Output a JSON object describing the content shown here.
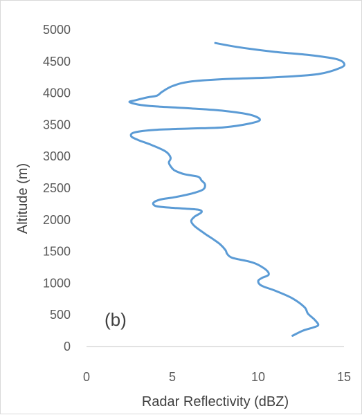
{
  "chart_data": {
    "type": "line",
    "title": "",
    "panel_label": "(b)",
    "xlabel": "Radar Reflectivity (dBZ)",
    "ylabel": "Altitude (m)",
    "xlim": [
      0,
      15
    ],
    "ylim": [
      0,
      5000
    ],
    "x_ticks": [
      "0",
      "5",
      "10",
      "15"
    ],
    "y_ticks": [
      "0",
      "500",
      "1000",
      "1500",
      "2000",
      "2500",
      "3000",
      "3500",
      "4000",
      "4500",
      "5000"
    ],
    "grid": false,
    "legend": "none",
    "series": [
      {
        "color": "#5b9bd5",
        "points": [
          [
            12.0,
            170
          ],
          [
            12.6,
            250
          ],
          [
            13.2,
            300
          ],
          [
            13.5,
            340
          ],
          [
            13.3,
            420
          ],
          [
            12.9,
            520
          ],
          [
            12.7,
            620
          ],
          [
            12.0,
            760
          ],
          [
            11.0,
            880
          ],
          [
            10.2,
            960
          ],
          [
            10.0,
            1030
          ],
          [
            10.2,
            1080
          ],
          [
            10.6,
            1130
          ],
          [
            10.5,
            1200
          ],
          [
            10.0,
            1290
          ],
          [
            9.5,
            1340
          ],
          [
            8.5,
            1400
          ],
          [
            8.2,
            1460
          ],
          [
            8.1,
            1520
          ],
          [
            7.8,
            1610
          ],
          [
            7.4,
            1690
          ],
          [
            6.9,
            1780
          ],
          [
            6.3,
            1900
          ],
          [
            6.1,
            1980
          ],
          [
            6.3,
            2050
          ],
          [
            6.7,
            2120
          ],
          [
            6.5,
            2160
          ],
          [
            5.5,
            2180
          ],
          [
            4.5,
            2200
          ],
          [
            4.0,
            2220
          ],
          [
            3.9,
            2270
          ],
          [
            4.3,
            2320
          ],
          [
            5.2,
            2360
          ],
          [
            6.2,
            2420
          ],
          [
            6.8,
            2480
          ],
          [
            6.9,
            2560
          ],
          [
            6.7,
            2620
          ],
          [
            6.5,
            2680
          ],
          [
            5.7,
            2720
          ],
          [
            5.2,
            2770
          ],
          [
            5.0,
            2810
          ],
          [
            4.8,
            2900
          ],
          [
            4.9,
            2980
          ],
          [
            4.6,
            3080
          ],
          [
            3.8,
            3180
          ],
          [
            3.0,
            3260
          ],
          [
            2.6,
            3320
          ],
          [
            2.8,
            3380
          ],
          [
            4.0,
            3420
          ],
          [
            6.0,
            3440
          ],
          [
            8.0,
            3460
          ],
          [
            9.5,
            3520
          ],
          [
            10.1,
            3580
          ],
          [
            9.5,
            3660
          ],
          [
            8.0,
            3720
          ],
          [
            6.0,
            3760
          ],
          [
            4.0,
            3790
          ],
          [
            3.0,
            3820
          ],
          [
            2.5,
            3860
          ],
          [
            2.9,
            3890
          ],
          [
            3.5,
            3930
          ],
          [
            4.1,
            3960
          ],
          [
            4.4,
            4020
          ],
          [
            5.0,
            4110
          ],
          [
            6.0,
            4180
          ],
          [
            8.0,
            4220
          ],
          [
            11.0,
            4250
          ],
          [
            13.5,
            4300
          ],
          [
            14.8,
            4400
          ],
          [
            15.0,
            4470
          ],
          [
            14.5,
            4540
          ],
          [
            13.0,
            4600
          ],
          [
            11.0,
            4650
          ],
          [
            9.5,
            4700
          ],
          [
            8.5,
            4740
          ],
          [
            7.5,
            4790
          ]
        ]
      }
    ]
  }
}
